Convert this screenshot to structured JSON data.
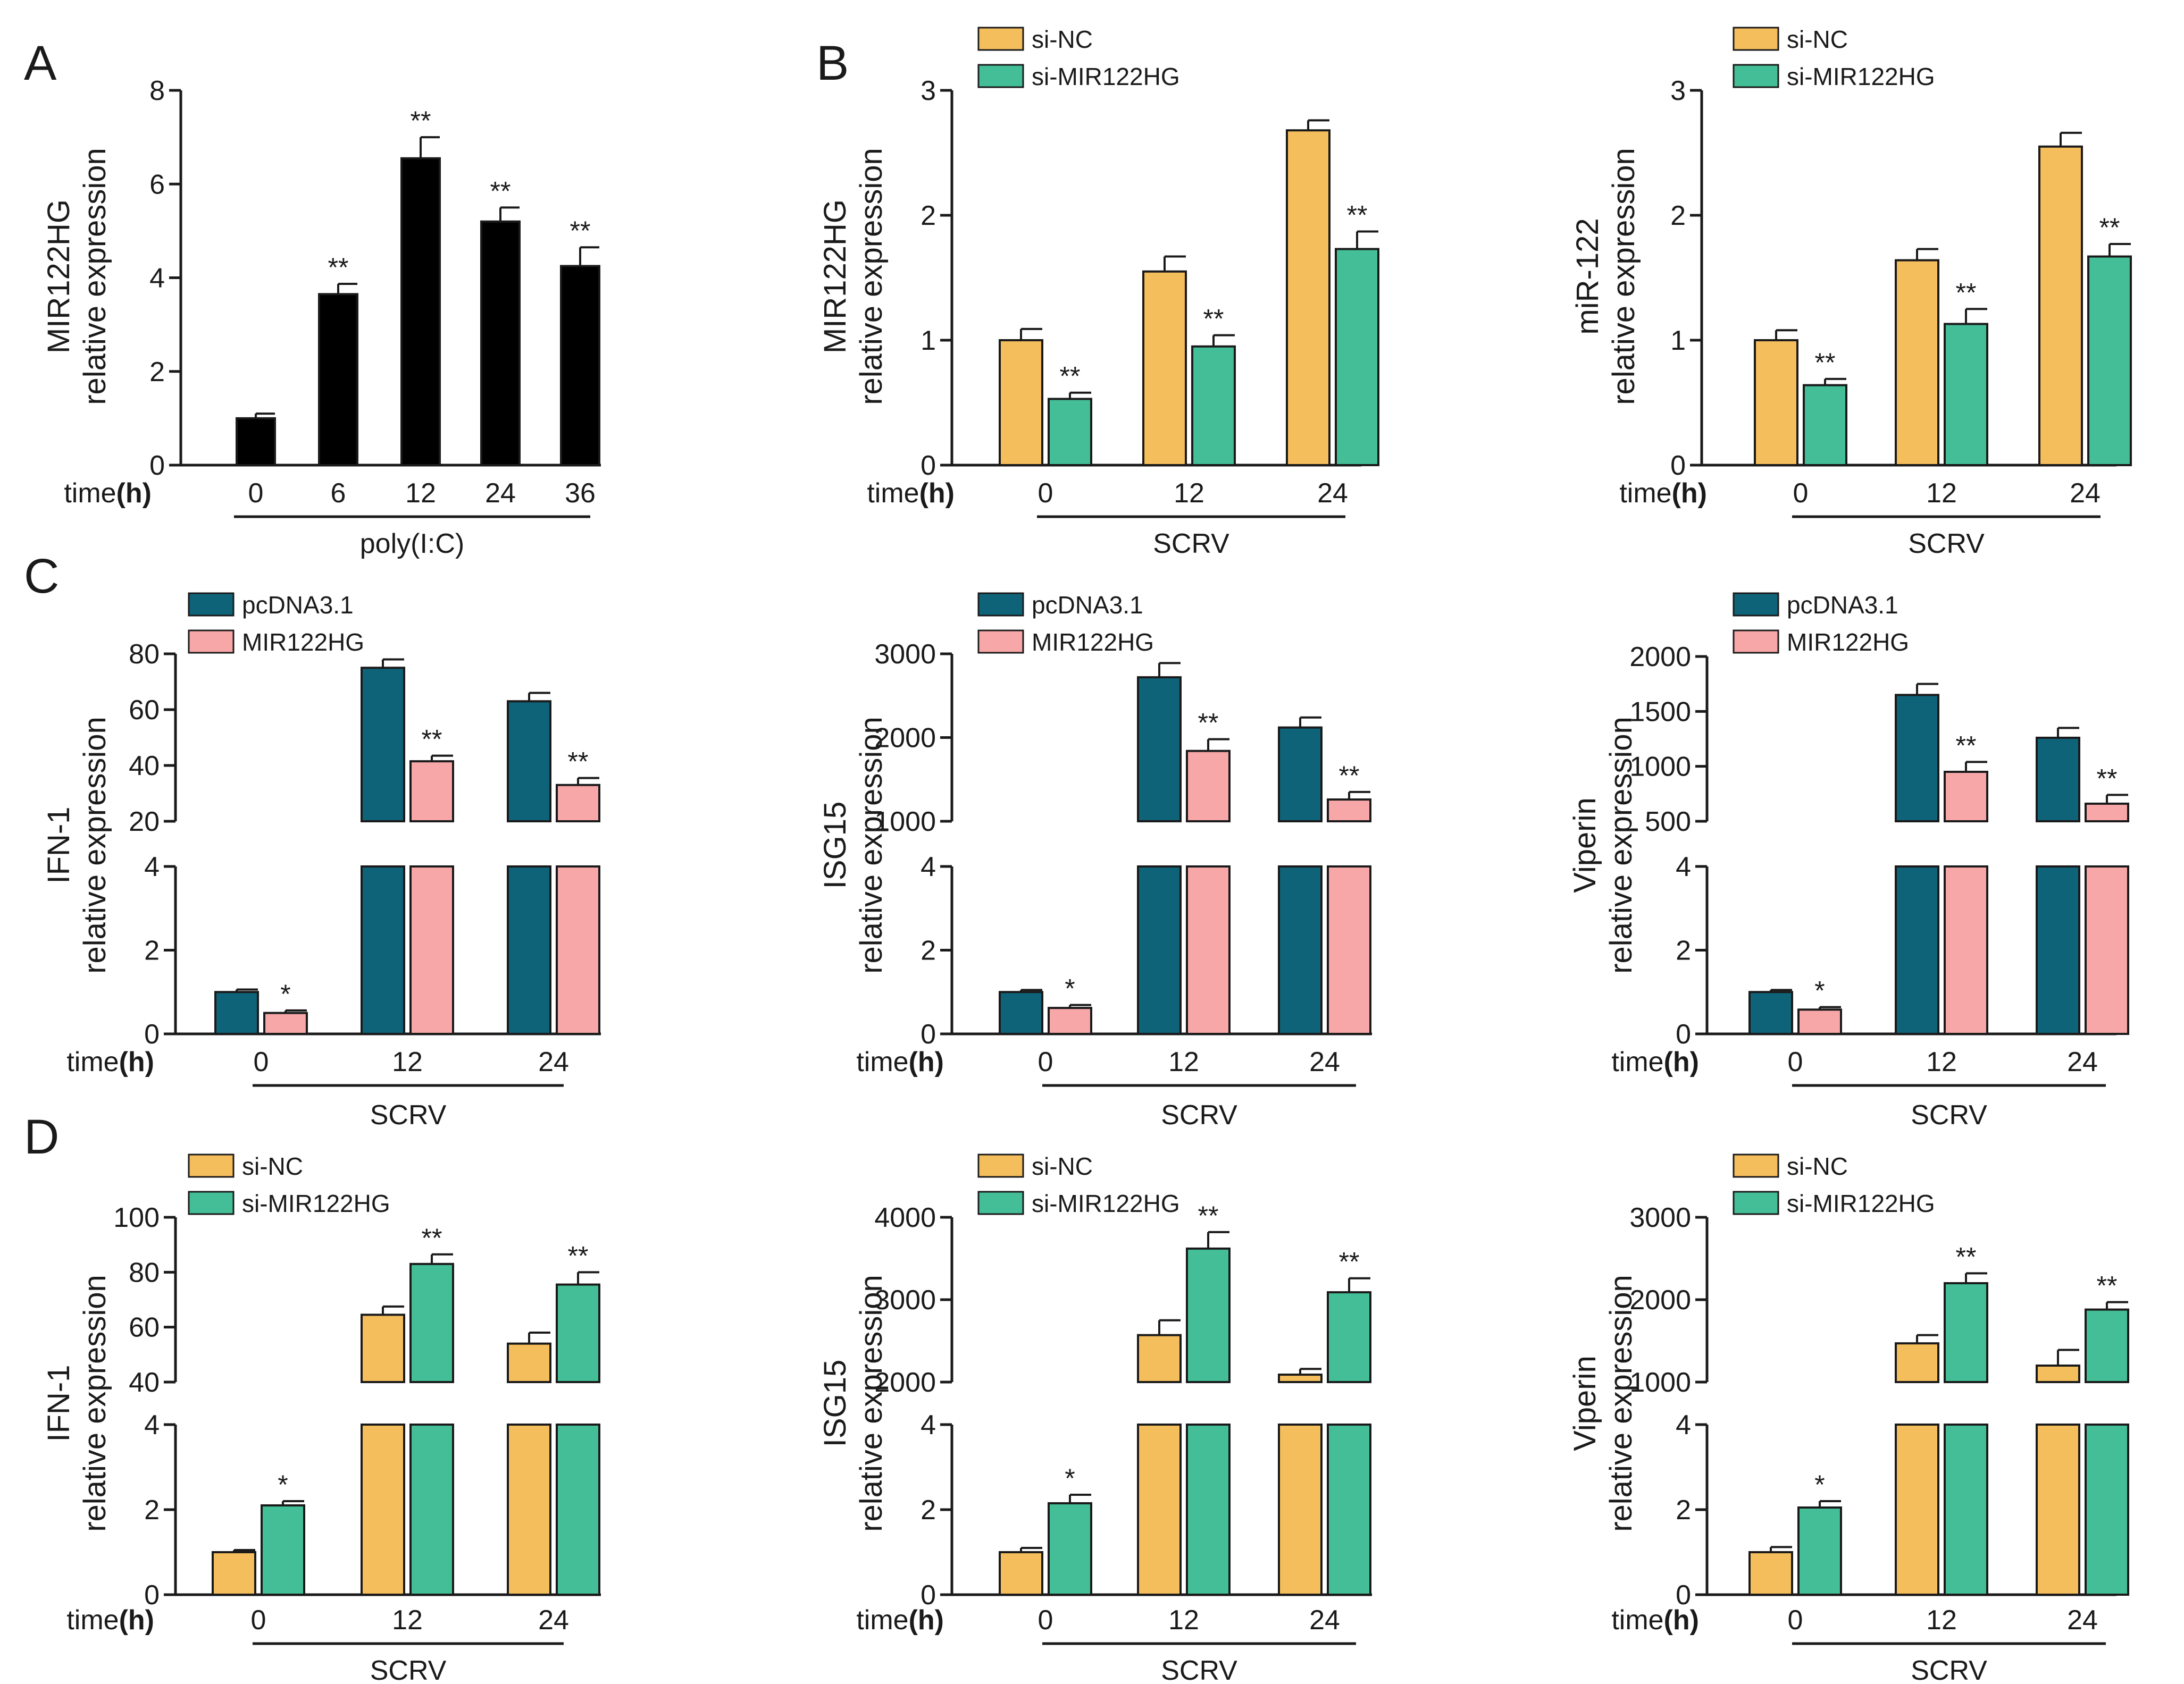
{
  "panel_letters": [
    "A",
    "B",
    "C",
    "D"
  ],
  "colors": {
    "black_bar": "#000000",
    "orange": "#F5BE5C",
    "green": "#44BE96",
    "teal": "#0F6379",
    "pink": "#F7A7A8",
    "axis": "#1a1a1a"
  },
  "chart_data": [
    {
      "id": "A",
      "type": "bar",
      "panel_letter": "A",
      "ylabel": [
        "MIR122HG",
        "relative expression"
      ],
      "time_label": "time",
      "time_unit": "(h)",
      "categories": [
        "0",
        "6",
        "12",
        "24",
        "36"
      ],
      "treatment": "poly(I:C)",
      "ylim": [
        0,
        8
      ],
      "yticks": [
        0,
        2,
        4,
        6,
        8
      ],
      "series": [
        {
          "name": "",
          "color": "black_bar",
          "values": [
            1.0,
            3.65,
            6.55,
            5.2,
            4.25
          ],
          "errors": [
            0.1,
            0.22,
            0.45,
            0.3,
            0.4
          ],
          "sig": [
            "",
            "**",
            "**",
            "**",
            "**"
          ]
        }
      ]
    },
    {
      "id": "B1",
      "type": "bar",
      "panel_letter": "B",
      "ylabel": [
        "MIR122HG",
        "relative expression"
      ],
      "time_label": "time",
      "time_unit": "(h)",
      "categories": [
        "0",
        "12",
        "24"
      ],
      "treatment": "SCRV",
      "ylim": [
        0,
        3
      ],
      "yticks": [
        0,
        1,
        2,
        3
      ],
      "legend": [
        "si-NC",
        "si-MIR122HG"
      ],
      "series": [
        {
          "name": "si-NC",
          "color": "orange",
          "values": [
            1.0,
            1.55,
            2.68
          ],
          "errors": [
            0.09,
            0.12,
            0.08
          ],
          "sig": [
            "",
            "",
            ""
          ]
        },
        {
          "name": "si-MIR122HG",
          "color": "green",
          "values": [
            0.53,
            0.95,
            1.73
          ],
          "errors": [
            0.05,
            0.09,
            0.14
          ],
          "sig": [
            "**",
            "**",
            "**"
          ]
        }
      ]
    },
    {
      "id": "B2",
      "type": "bar",
      "ylabel": [
        "miR-122",
        "relative expression"
      ],
      "time_label": "time",
      "time_unit": "(h)",
      "categories": [
        "0",
        "12",
        "24"
      ],
      "treatment": "SCRV",
      "ylim": [
        0,
        3
      ],
      "yticks": [
        0,
        1,
        2,
        3
      ],
      "legend": [
        "si-NC",
        "si-MIR122HG"
      ],
      "series": [
        {
          "name": "si-NC",
          "color": "orange",
          "values": [
            1.0,
            1.64,
            2.55
          ],
          "errors": [
            0.08,
            0.09,
            0.11
          ],
          "sig": [
            "",
            "",
            ""
          ]
        },
        {
          "name": "si-MIR122HG",
          "color": "green",
          "values": [
            0.64,
            1.13,
            1.67
          ],
          "errors": [
            0.05,
            0.12,
            0.1
          ],
          "sig": [
            "**",
            "**",
            "**"
          ]
        }
      ]
    },
    {
      "id": "C1",
      "type": "bar",
      "panel_letter": "C",
      "broken": true,
      "ylabel": [
        "IFN-1",
        "relative expression"
      ],
      "time_label": "time",
      "time_unit": "(h)",
      "categories": [
        "0",
        "12",
        "24"
      ],
      "treatment": "SCRV",
      "ylim_lower": [
        0,
        4
      ],
      "yticks_lower": [
        0,
        2,
        4
      ],
      "ylim_upper": [
        20,
        80
      ],
      "yticks_upper": [
        20,
        40,
        60,
        80
      ],
      "legend": [
        "pcDNA3.1",
        "MIR122HG"
      ],
      "series": [
        {
          "name": "pcDNA3.1",
          "color": "teal",
          "values": [
            1.0,
            75,
            63
          ],
          "errors": [
            0.06,
            3,
            3
          ],
          "sig": [
            "",
            "",
            ""
          ]
        },
        {
          "name": "MIR122HG",
          "color": "pink",
          "values": [
            0.5,
            41.5,
            33
          ],
          "errors": [
            0.06,
            2,
            2.5
          ],
          "sig": [
            "*",
            "**",
            "**"
          ]
        }
      ]
    },
    {
      "id": "C2",
      "type": "bar",
      "broken": true,
      "ylabel": [
        "ISG15",
        "relative expression"
      ],
      "time_label": "time",
      "time_unit": "(h)",
      "categories": [
        "0",
        "12",
        "24"
      ],
      "treatment": "SCRV",
      "ylim_lower": [
        0,
        4
      ],
      "yticks_lower": [
        0,
        2,
        4
      ],
      "ylim_upper": [
        1000,
        3000
      ],
      "yticks_upper": [
        1000,
        2000,
        3000
      ],
      "legend": [
        "pcDNA3.1",
        "MIR122HG"
      ],
      "series": [
        {
          "name": "pcDNA3.1",
          "color": "teal",
          "values": [
            1.0,
            2720,
            2120
          ],
          "errors": [
            0.05,
            170,
            120
          ],
          "sig": [
            "",
            "",
            ""
          ]
        },
        {
          "name": "MIR122HG",
          "color": "pink",
          "values": [
            0.62,
            1840,
            1260
          ],
          "errors": [
            0.07,
            140,
            90
          ],
          "sig": [
            "*",
            "**",
            "**"
          ]
        }
      ]
    },
    {
      "id": "C3",
      "type": "bar",
      "broken": true,
      "ylabel": [
        "Viperin",
        "relative expression"
      ],
      "time_label": "time",
      "time_unit": "(h)",
      "categories": [
        "0",
        "12",
        "24"
      ],
      "treatment": "SCRV",
      "ylim_lower": [
        0,
        4
      ],
      "yticks_lower": [
        0,
        2,
        4
      ],
      "ylim_upper": [
        500,
        2000
      ],
      "yticks_upper": [
        500,
        1000,
        1500,
        2000
      ],
      "legend": [
        "pcDNA3.1",
        "MIR122HG"
      ],
      "series": [
        {
          "name": "pcDNA3.1",
          "color": "teal",
          "values": [
            1.0,
            1650,
            1260
          ],
          "errors": [
            0.05,
            100,
            90
          ],
          "sig": [
            "",
            "",
            ""
          ]
        },
        {
          "name": "MIR122HG",
          "color": "pink",
          "values": [
            0.58,
            950,
            660
          ],
          "errors": [
            0.06,
            90,
            80
          ],
          "sig": [
            "*",
            "**",
            "**"
          ]
        }
      ]
    },
    {
      "id": "D1",
      "type": "bar",
      "panel_letter": "D",
      "broken": true,
      "ylabel": [
        "IFN-1",
        "relative expression"
      ],
      "time_label": "time",
      "time_unit": "(h)",
      "categories": [
        "0",
        "12",
        "24"
      ],
      "treatment": "SCRV",
      "ylim_lower": [
        0,
        4
      ],
      "yticks_lower": [
        0,
        2,
        4
      ],
      "ylim_upper": [
        40,
        100
      ],
      "yticks_upper": [
        40,
        60,
        80,
        100
      ],
      "legend": [
        "si-NC",
        "si-MIR122HG"
      ],
      "series": [
        {
          "name": "si-NC",
          "color": "orange",
          "values": [
            1.0,
            64.5,
            54
          ],
          "errors": [
            0.05,
            3,
            4
          ],
          "sig": [
            "",
            "",
            ""
          ]
        },
        {
          "name": "si-MIR122HG",
          "color": "green",
          "values": [
            2.1,
            83,
            75.5
          ],
          "errors": [
            0.1,
            3.5,
            4.5
          ],
          "sig": [
            "*",
            "**",
            "**"
          ]
        }
      ]
    },
    {
      "id": "D2",
      "type": "bar",
      "broken": true,
      "ylabel": [
        "ISG15",
        "relative expression"
      ],
      "time_label": "time",
      "time_unit": "(h)",
      "categories": [
        "0",
        "12",
        "24"
      ],
      "treatment": "SCRV",
      "ylim_lower": [
        0,
        4
      ],
      "yticks_lower": [
        0,
        2,
        4
      ],
      "ylim_upper": [
        2000,
        4000
      ],
      "yticks_upper": [
        2000,
        3000,
        4000
      ],
      "legend": [
        "si-NC",
        "si-MIR122HG"
      ],
      "series": [
        {
          "name": "si-NC",
          "color": "orange",
          "values": [
            1.0,
            2570,
            2090
          ],
          "errors": [
            0.1,
            180,
            70
          ],
          "sig": [
            "",
            "",
            ""
          ]
        },
        {
          "name": "si-MIR122HG",
          "color": "green",
          "values": [
            2.15,
            3620,
            3090
          ],
          "errors": [
            0.2,
            200,
            170
          ],
          "sig": [
            "*",
            "**",
            "**"
          ]
        }
      ]
    },
    {
      "id": "D3",
      "type": "bar",
      "broken": true,
      "ylabel": [
        "Viperin",
        "relative expression"
      ],
      "time_label": "time",
      "time_unit": "(h)",
      "categories": [
        "0",
        "12",
        "24"
      ],
      "treatment": "SCRV",
      "ylim_lower": [
        0,
        4
      ],
      "yticks_lower": [
        0,
        2,
        4
      ],
      "ylim_upper": [
        1000,
        3000
      ],
      "yticks_upper": [
        1000,
        2000,
        3000
      ],
      "legend": [
        "si-NC",
        "si-MIR122HG"
      ],
      "series": [
        {
          "name": "si-NC",
          "color": "orange",
          "values": [
            1.0,
            1470,
            1200
          ],
          "errors": [
            0.12,
            100,
            190
          ],
          "sig": [
            "",
            "",
            ""
          ]
        },
        {
          "name": "si-MIR122HG",
          "color": "green",
          "values": [
            2.05,
            2200,
            1880
          ],
          "errors": [
            0.15,
            120,
            90
          ],
          "sig": [
            "*",
            "**",
            "**"
          ]
        }
      ]
    }
  ]
}
